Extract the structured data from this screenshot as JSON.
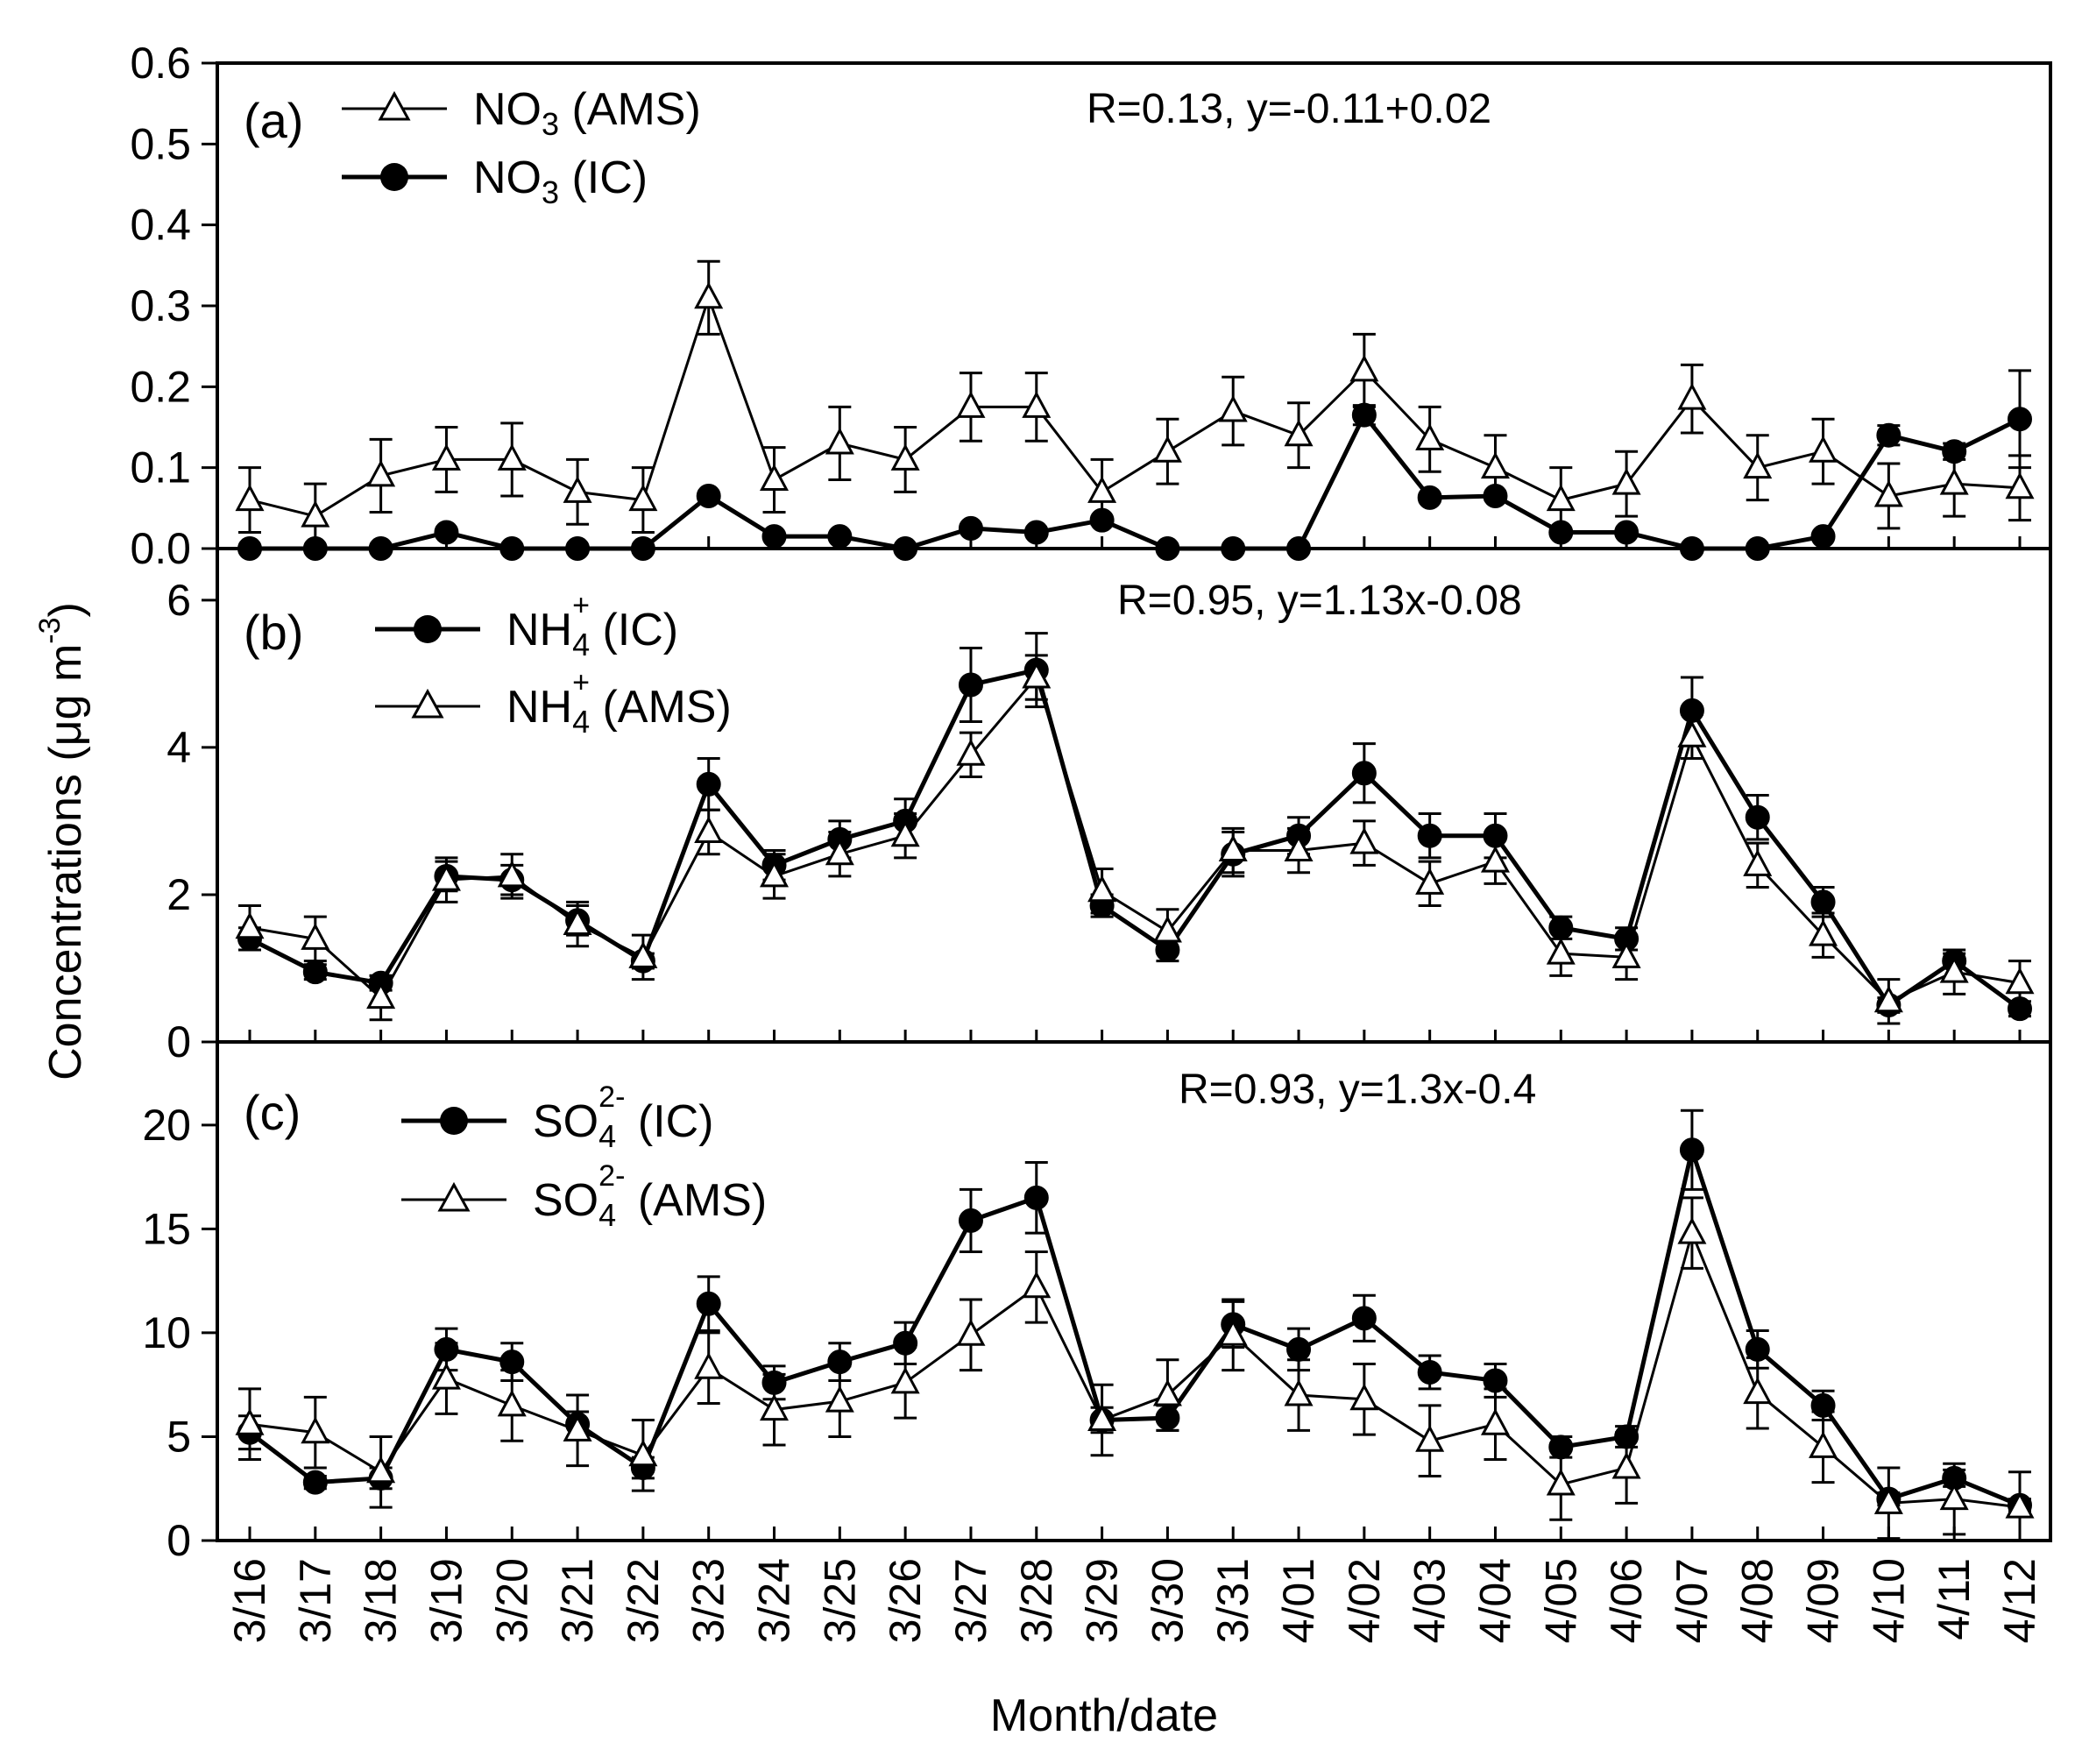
{
  "figure": {
    "ylabel_prefix": "Concentrations (",
    "ylabel_unit": "μg m",
    "ylabel_exp": "-3",
    "ylabel_suffix": ")",
    "xlabel": "Month/date"
  },
  "colors": {
    "ink": "#000000",
    "marker_open": "#ffffff"
  },
  "chart_data": [
    {
      "type": "line",
      "panel_label": "(a)",
      "regression_text": "R=0.13, y=-0.11+0.02",
      "ylim": [
        0,
        0.6
      ],
      "yticks": [
        0.0,
        0.1,
        0.2,
        0.3,
        0.4,
        0.5,
        0.6
      ],
      "ytick_labels": [
        "0.0",
        "0.1",
        "0.2",
        "0.3",
        "0.4",
        "0.5",
        "0.6"
      ],
      "categories": [
        "3/16",
        "3/17",
        "3/18",
        "3/19",
        "3/20",
        "3/21",
        "3/22",
        "3/23",
        "3/24",
        "3/25",
        "3/26",
        "3/27",
        "3/28",
        "3/29",
        "3/30",
        "3/31",
        "4/01",
        "4/02",
        "4/03",
        "4/04",
        "4/05",
        "4/06",
        "4/07",
        "4/08",
        "4/09",
        "4/10",
        "4/11",
        "4/12"
      ],
      "series": [
        {
          "name": "NO3 (AMS)",
          "legend_main": "NO",
          "legend_sub": "3",
          "legend_sup": "",
          "legend_rest": " (AMS)",
          "marker": "open-triangle",
          "values": [
            0.06,
            0.04,
            0.09,
            0.11,
            0.11,
            0.07,
            0.06,
            0.31,
            0.085,
            0.13,
            0.11,
            0.175,
            0.175,
            0.07,
            0.12,
            0.17,
            0.14,
            0.22,
            0.135,
            0.1,
            0.06,
            0.08,
            0.185,
            0.1,
            0.12,
            0.065,
            0.08,
            0.075
          ],
          "errors": [
            0.04,
            0.04,
            0.045,
            0.04,
            0.045,
            0.04,
            0.04,
            0.045,
            0.04,
            0.045,
            0.04,
            0.042,
            0.042,
            0.04,
            0.04,
            0.042,
            0.04,
            0.045,
            0.04,
            0.04,
            0.04,
            0.04,
            0.042,
            0.04,
            0.04,
            0.04,
            0.04,
            0.04
          ]
        },
        {
          "name": "NO3 (IC)",
          "legend_main": "NO",
          "legend_sub": "3",
          "legend_sup": "",
          "legend_rest": " (IC)",
          "marker": "filled-circle",
          "values": [
            0,
            0,
            0,
            0.02,
            0,
            0,
            0,
            0.065,
            0.015,
            0.015,
            0,
            0.025,
            0.02,
            0.035,
            0,
            0,
            0,
            0.165,
            0.063,
            0.065,
            0.02,
            0.02,
            0,
            0,
            0.015,
            0.14,
            0.12,
            0.16
          ],
          "errors": [
            0,
            0,
            0,
            0,
            0,
            0,
            0,
            0,
            0,
            0,
            0,
            0,
            0,
            0,
            0,
            0,
            0,
            0.012,
            0,
            0,
            0,
            0,
            0,
            0,
            0,
            0.012,
            0.01,
            0.06
          ]
        }
      ]
    },
    {
      "type": "line",
      "panel_label": "(b)",
      "regression_text": "R=0.95, y=1.13x-0.08",
      "ylim": [
        0,
        6.7
      ],
      "yticks": [
        0,
        2,
        4,
        6
      ],
      "ytick_labels": [
        "0",
        "2",
        "4",
        "6"
      ],
      "categories": [
        "3/16",
        "3/17",
        "3/18",
        "3/19",
        "3/20",
        "3/21",
        "3/22",
        "3/23",
        "3/24",
        "3/25",
        "3/26",
        "3/27",
        "3/28",
        "3/29",
        "3/30",
        "3/31",
        "4/01",
        "4/02",
        "4/03",
        "4/04",
        "4/05",
        "4/06",
        "4/07",
        "4/08",
        "4/09",
        "4/10",
        "4/11",
        "4/12"
      ],
      "series": [
        {
          "name": "NH4+ (IC)",
          "legend_main": "NH",
          "legend_sub": "4",
          "legend_sup": "+",
          "legend_rest": " (IC)",
          "marker": "filled-circle",
          "values": [
            1.4,
            0.95,
            0.8,
            2.25,
            2.2,
            1.65,
            1.1,
            3.5,
            2.4,
            2.75,
            3.0,
            4.85,
            5.05,
            1.85,
            1.25,
            2.55,
            2.8,
            3.65,
            2.8,
            2.8,
            1.55,
            1.4,
            4.5,
            3.05,
            1.9,
            0.5,
            1.1,
            0.45
          ],
          "errors": [
            0.15,
            0.1,
            0.1,
            0.2,
            0.2,
            0.2,
            0.1,
            0.35,
            0.2,
            0.25,
            0.3,
            0.5,
            0.5,
            0.15,
            0.15,
            0.3,
            0.25,
            0.4,
            0.3,
            0.3,
            0.15,
            0.15,
            0.45,
            0.3,
            0.2,
            0.1,
            0.1,
            0.1
          ]
        },
        {
          "name": "NH4+ (AMS)",
          "legend_main": "NH",
          "legend_sub": "4",
          "legend_sup": "+",
          "legend_rest": " (AMS)",
          "marker": "open-triangle",
          "values": [
            1.55,
            1.4,
            0.6,
            2.2,
            2.25,
            1.6,
            1.15,
            2.85,
            2.25,
            2.55,
            2.8,
            3.9,
            4.95,
            2.05,
            1.5,
            2.6,
            2.6,
            2.7,
            2.15,
            2.45,
            1.2,
            1.15,
            4.15,
            2.4,
            1.45,
            0.55,
            0.95,
            0.8
          ],
          "errors": [
            0.3,
            0.3,
            0.3,
            0.3,
            0.3,
            0.3,
            0.3,
            0.3,
            0.3,
            0.3,
            0.3,
            0.3,
            0.3,
            0.3,
            0.3,
            0.3,
            0.3,
            0.3,
            0.3,
            0.3,
            0.3,
            0.3,
            0.3,
            0.3,
            0.3,
            0.3,
            0.3,
            0.3
          ]
        }
      ]
    },
    {
      "type": "line",
      "panel_label": "(c)",
      "regression_text": "R=0.93, y=1.3x-0.4",
      "ylim": [
        0,
        24
      ],
      "yticks": [
        0,
        5,
        10,
        15,
        20
      ],
      "ytick_labels": [
        "0",
        "5",
        "10",
        "15",
        "20"
      ],
      "categories": [
        "3/16",
        "3/17",
        "3/18",
        "3/19",
        "3/20",
        "3/21",
        "3/22",
        "3/23",
        "3/24",
        "3/25",
        "3/26",
        "3/27",
        "3/28",
        "3/29",
        "3/30",
        "3/31",
        "4/01",
        "4/02",
        "4/03",
        "4/04",
        "4/05",
        "4/06",
        "4/07",
        "4/08",
        "4/09",
        "4/10",
        "4/11",
        "4/12"
      ],
      "series": [
        {
          "name": "SO4 2- (IC)",
          "legend_main": "SO",
          "legend_sub": "4",
          "legend_sup": "2-",
          "legend_rest": " (IC)",
          "marker": "filled-circle",
          "values": [
            5.2,
            2.8,
            3.0,
            9.2,
            8.6,
            5.6,
            3.5,
            11.4,
            7.6,
            8.6,
            9.5,
            15.4,
            16.5,
            5.8,
            5.9,
            10.4,
            9.2,
            10.7,
            8.1,
            7.7,
            4.5,
            5.0,
            18.8,
            9.2,
            6.5,
            2.0,
            3.0,
            1.7
          ],
          "errors": [
            0.8,
            0.3,
            0.5,
            1.0,
            0.9,
            0.6,
            0.5,
            1.3,
            0.8,
            0.9,
            1.0,
            1.5,
            1.7,
            0.6,
            0.6,
            1.1,
            1.0,
            1.1,
            0.8,
            0.8,
            0.5,
            0.5,
            1.9,
            0.9,
            0.7,
            0.3,
            0.4,
            0.3
          ]
        },
        {
          "name": "SO4 2- (AMS)",
          "legend_main": "SO",
          "legend_sub": "4",
          "legend_sup": "2-",
          "legend_rest": " (AMS)",
          "marker": "open-triangle",
          "values": [
            5.6,
            5.2,
            3.3,
            7.8,
            6.5,
            5.3,
            4.1,
            8.3,
            6.3,
            6.7,
            7.6,
            9.9,
            12.2,
            5.8,
            7.0,
            9.9,
            7.0,
            6.8,
            4.8,
            5.6,
            2.7,
            3.5,
            14.8,
            7.1,
            4.5,
            1.8,
            2.0,
            1.6
          ],
          "errors": [
            1.7,
            1.7,
            1.7,
            1.7,
            1.7,
            1.7,
            1.7,
            1.7,
            1.7,
            1.7,
            1.7,
            1.7,
            1.7,
            1.7,
            1.7,
            1.7,
            1.7,
            1.7,
            1.7,
            1.7,
            1.7,
            1.7,
            1.7,
            1.7,
            1.7,
            1.7,
            1.7,
            1.7
          ]
        }
      ]
    }
  ]
}
